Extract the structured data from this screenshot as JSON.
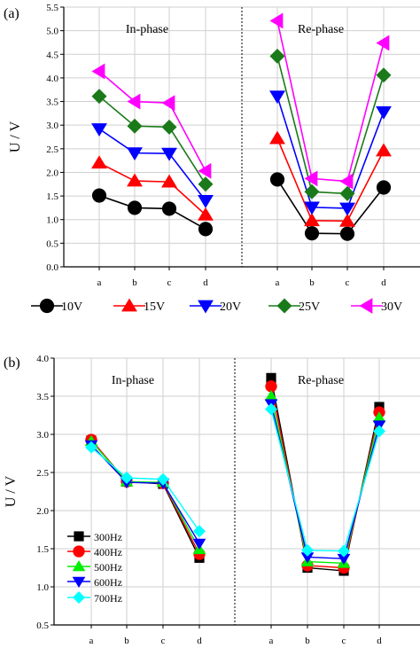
{
  "chart_data": [
    {
      "type": "line",
      "panel_label": "(a)",
      "ylabel": "U / V",
      "ylim": [
        0.0,
        5.5
      ],
      "yticks": [
        "0.0",
        "0.5",
        "1.0",
        "1.5",
        "2.0",
        "2.5",
        "3.0",
        "3.5",
        "4.0",
        "4.5",
        "5.0",
        "5.5"
      ],
      "groups": [
        {
          "name": "In-phase",
          "categories": [
            "a",
            "b",
            "c",
            "d"
          ]
        },
        {
          "name": "Re-phase",
          "categories": [
            "a",
            "b",
            "c",
            "d"
          ]
        }
      ],
      "grid": true,
      "legend_position": "bottom",
      "series": [
        {
          "name": "10V",
          "color": "#000000",
          "marker": "circle",
          "in_phase": [
            1.51,
            1.25,
            1.23,
            0.8
          ],
          "re_phase": [
            1.85,
            0.71,
            0.7,
            1.68
          ]
        },
        {
          "name": "15V",
          "color": "#ff0000",
          "marker": "triangle-up",
          "in_phase": [
            2.2,
            1.82,
            1.8,
            1.1
          ],
          "re_phase": [
            2.72,
            0.98,
            0.97,
            2.46
          ]
        },
        {
          "name": "20V",
          "color": "#0000ff",
          "marker": "triangle-down",
          "in_phase": [
            2.92,
            2.41,
            2.4,
            1.4
          ],
          "re_phase": [
            3.61,
            1.26,
            1.24,
            3.28
          ]
        },
        {
          "name": "25V",
          "color": "#1a7a1a",
          "marker": "diamond",
          "in_phase": [
            3.61,
            2.98,
            2.96,
            1.75
          ],
          "re_phase": [
            4.46,
            1.59,
            1.55,
            4.06
          ]
        },
        {
          "name": "30V",
          "color": "#ff00ff",
          "marker": "triangle-left",
          "in_phase": [
            4.14,
            3.5,
            3.47,
            2.03
          ],
          "re_phase": [
            5.21,
            1.87,
            1.81,
            4.74
          ]
        }
      ]
    },
    {
      "type": "line",
      "panel_label": "(b)",
      "ylabel": "U / V",
      "ylim": [
        0.5,
        4.0
      ],
      "yticks": [
        "0.5",
        "1.0",
        "1.5",
        "2.0",
        "2.5",
        "3.0",
        "3.5",
        "4.0"
      ],
      "groups": [
        {
          "name": "In-phase",
          "categories": [
            "a",
            "b",
            "c",
            "d"
          ]
        },
        {
          "name": "Re-phase",
          "categories": [
            "a",
            "b",
            "c",
            "d"
          ]
        }
      ],
      "grid": true,
      "legend_position": "bottom-left",
      "series": [
        {
          "name": "300Hz",
          "color": "#000000",
          "marker": "square",
          "in_phase": [
            2.92,
            2.38,
            2.35,
            1.38
          ],
          "re_phase": [
            3.74,
            1.25,
            1.21,
            3.36
          ]
        },
        {
          "name": "400Hz",
          "color": "#ff0000",
          "marker": "circle",
          "in_phase": [
            2.93,
            2.38,
            2.36,
            1.43
          ],
          "re_phase": [
            3.63,
            1.28,
            1.25,
            3.29
          ]
        },
        {
          "name": "500Hz",
          "color": "#00ee00",
          "marker": "triangle-up",
          "in_phase": [
            2.91,
            2.38,
            2.37,
            1.49
          ],
          "re_phase": [
            3.5,
            1.33,
            1.31,
            3.22
          ]
        },
        {
          "name": "600Hz",
          "color": "#0000ff",
          "marker": "triangle-down",
          "in_phase": [
            2.86,
            2.37,
            2.36,
            1.57
          ],
          "re_phase": [
            3.4,
            1.39,
            1.37,
            3.12
          ]
        },
        {
          "name": "700Hz",
          "color": "#00ffff",
          "marker": "diamond",
          "in_phase": [
            2.83,
            2.43,
            2.41,
            1.73
          ],
          "re_phase": [
            3.33,
            1.48,
            1.47,
            3.04
          ]
        }
      ]
    }
  ]
}
